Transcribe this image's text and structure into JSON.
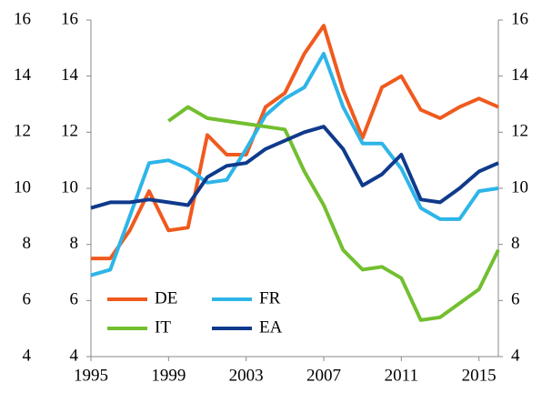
{
  "chart_data": {
    "type": "line",
    "x": [
      1995,
      1996,
      1997,
      1998,
      1999,
      2000,
      2001,
      2002,
      2003,
      2004,
      2005,
      2006,
      2007,
      2008,
      2009,
      2010,
      2011,
      2012,
      2013,
      2014,
      2015,
      2016
    ],
    "series": [
      {
        "name": "DE",
        "color": "#f05a1e",
        "values": [
          7.5,
          7.5,
          8.5,
          9.9,
          8.5,
          8.6,
          11.9,
          11.2,
          11.2,
          12.9,
          13.4,
          14.8,
          15.8,
          13.5,
          11.8,
          13.6,
          14.0,
          12.8,
          12.5,
          12.9,
          13.2,
          12.9
        ]
      },
      {
        "name": "FR",
        "color": "#2db5e8",
        "values": [
          6.9,
          7.1,
          9.0,
          10.9,
          11.0,
          10.7,
          10.2,
          10.3,
          11.4,
          12.6,
          13.2,
          13.6,
          14.8,
          12.9,
          11.6,
          11.6,
          10.7,
          9.3,
          8.9,
          8.9,
          9.9,
          10.0
        ]
      },
      {
        "name": "IT",
        "color": "#72bf2f",
        "values": [
          null,
          null,
          null,
          null,
          12.4,
          12.9,
          12.5,
          12.4,
          12.3,
          12.2,
          12.1,
          10.6,
          9.4,
          7.8,
          7.1,
          7.2,
          6.8,
          5.3,
          5.4,
          5.9,
          6.4,
          7.8
        ]
      },
      {
        "name": "EA",
        "color": "#0f3a8c",
        "values": [
          9.3,
          9.5,
          9.5,
          9.6,
          9.5,
          9.4,
          10.4,
          10.8,
          10.9,
          11.4,
          11.7,
          12.0,
          12.2,
          11.4,
          10.1,
          10.5,
          11.2,
          9.6,
          9.5,
          10.0,
          10.6,
          10.9
        ]
      }
    ],
    "xlim": [
      1995,
      2016
    ],
    "xticks": [
      1995,
      1999,
      2003,
      2007,
      2011,
      2015
    ],
    "ylim": [
      4,
      16
    ],
    "yticks": [
      4,
      6,
      8,
      10,
      12,
      14,
      16
    ],
    "y2lim": [
      4,
      16
    ],
    "y2ticks": [
      4,
      6,
      8,
      10,
      12,
      14,
      16
    ]
  }
}
